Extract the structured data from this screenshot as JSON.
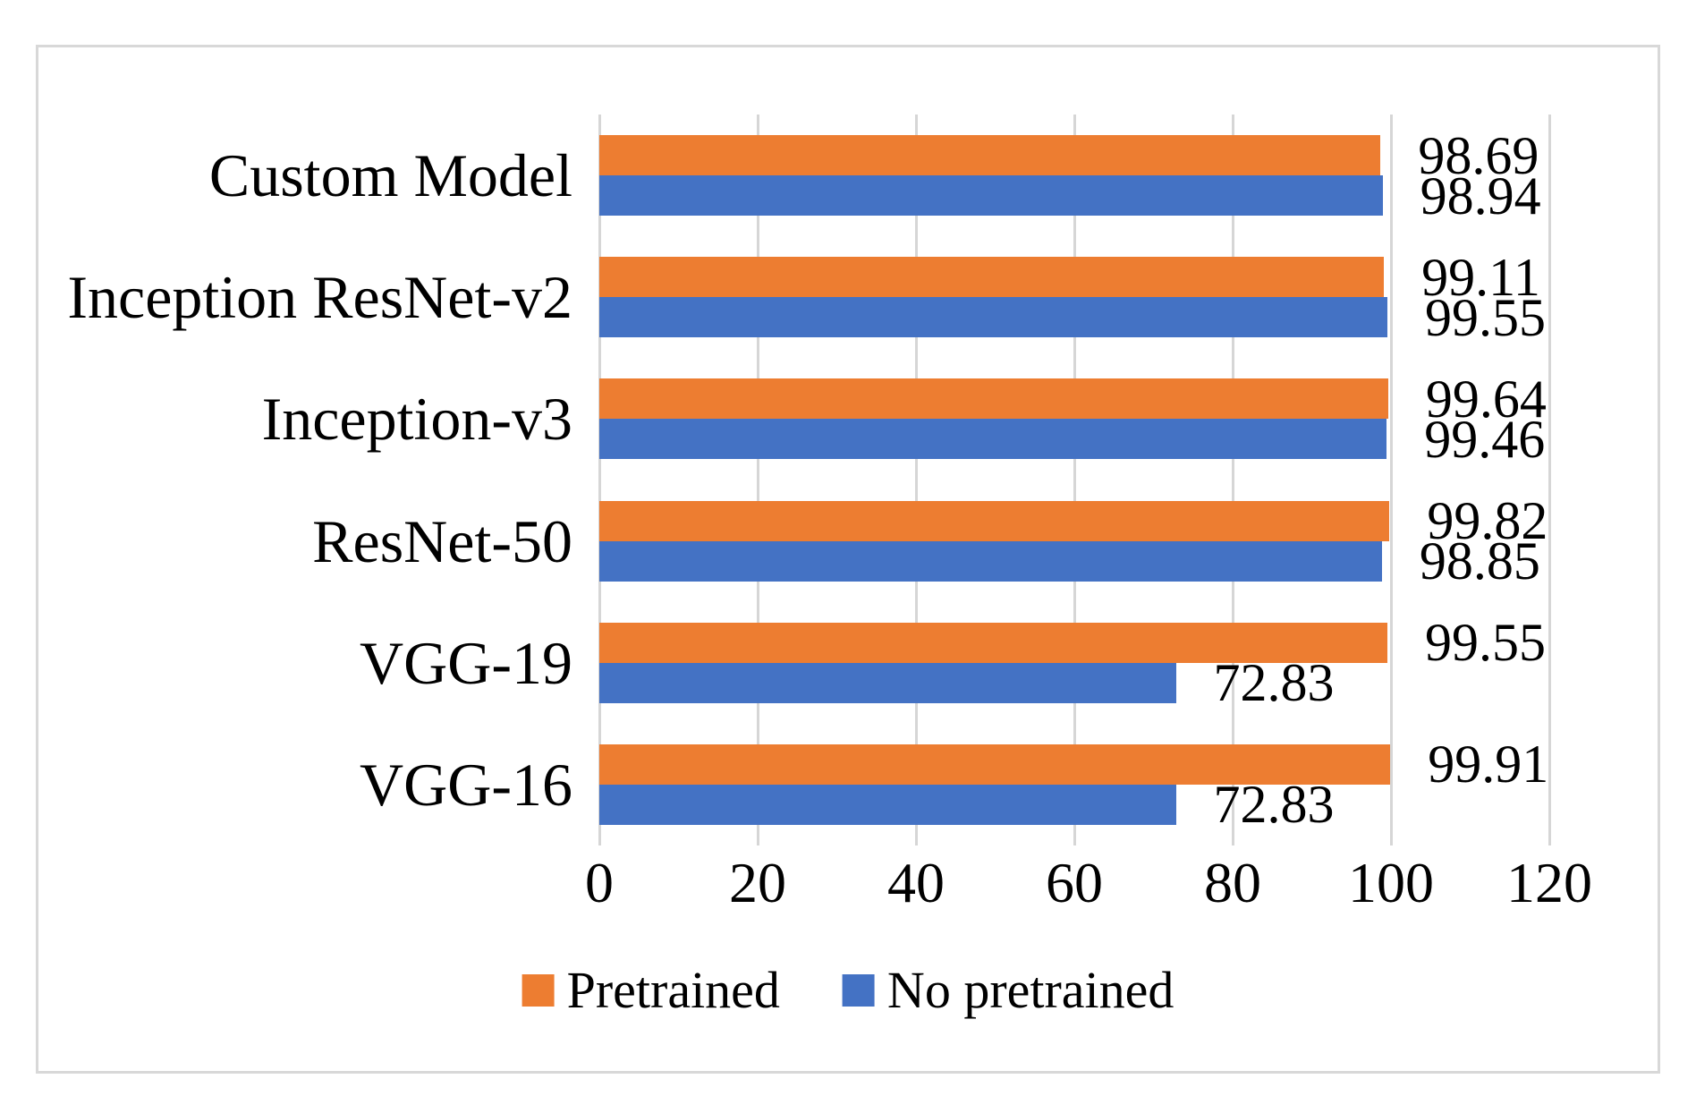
{
  "figure": {
    "background_color": "#FFFFFF",
    "frame_border_color": "#D8D8D8",
    "gridline_color": "#D6D6D6",
    "text_color": "#000000"
  },
  "chart_data": {
    "type": "bar",
    "orientation": "horizontal",
    "title": "",
    "xlabel": "",
    "ylabel": "",
    "categories": [
      "Custom Model",
      "Inception ResNet-v2",
      "Inception-v3",
      "ResNet-50",
      "VGG-19",
      "VGG-16"
    ],
    "series": [
      {
        "name": "Pretrained",
        "color": "#ED7D31",
        "values": [
          98.69,
          99.11,
          99.64,
          99.82,
          99.55,
          99.91
        ]
      },
      {
        "name": "No pretrained",
        "color": "#4472C4",
        "values": [
          98.94,
          99.55,
          99.46,
          98.85,
          72.83,
          72.83
        ]
      }
    ],
    "data_labels": [
      "98.69",
      "99.11",
      "99.64",
      "99.82",
      "99.55",
      "99.91",
      "98.94",
      "99.55",
      "99.46",
      "98.85",
      "72.83",
      "72.83"
    ],
    "xlim": [
      0,
      120
    ],
    "xticks": [
      0,
      20,
      40,
      60,
      80,
      100,
      120
    ],
    "grid": true,
    "legend_position": "bottom"
  }
}
